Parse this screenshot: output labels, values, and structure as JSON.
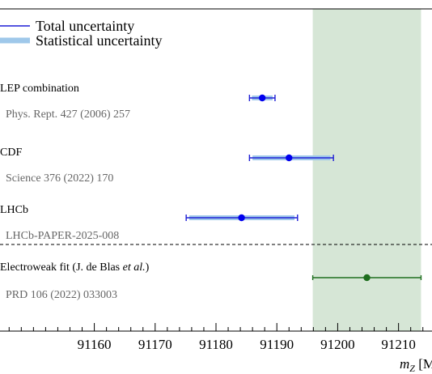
{
  "chart_data": {
    "type": "scatter",
    "title": "",
    "xlabel": "m_Z [MeV]",
    "xlabel_parts": {
      "var": "m",
      "sub": "Z",
      "unit": "[MeV]"
    },
    "xlim": [
      91144.5,
      91215.5
    ],
    "x_ticks": [
      91160,
      91170,
      91180,
      91190,
      91200,
      91210
    ],
    "x_tick_labels": [
      "91160",
      "91170",
      "91180",
      "91190",
      "91200",
      "91210"
    ],
    "grid": false,
    "legend": {
      "location": "top-left",
      "entries": [
        {
          "key": "total",
          "label": "Total uncertainty",
          "style": "thin-line",
          "color": "#1f1fd6"
        },
        {
          "key": "stat",
          "label": "Statistical uncertainty",
          "style": "thick-band",
          "color": "#9fc8ea"
        }
      ]
    },
    "measurements": [
      {
        "name": "LEP combination",
        "reference": "Phys. Rept. 427 (2006) 257",
        "value": 91187.6,
        "total_low": 91185.5,
        "total_high": 91189.7,
        "stat_low": 91185.9,
        "stat_high": 91189.3,
        "color": "#0000ee"
      },
      {
        "name": "CDF",
        "reference": "Science 376 (2022) 170",
        "value": 91192.0,
        "total_low": 91185.5,
        "total_high": 91199.3,
        "stat_low": 91186.0,
        "stat_high": 91198.8,
        "color": "#0000ee"
      },
      {
        "name": "LHCb",
        "reference": "LHCb-PAPER-2025-008",
        "value": 91184.2,
        "total_low": 91175.1,
        "total_high": 91193.4,
        "stat_low": 91175.6,
        "stat_high": 91192.9,
        "color": "#0000ee"
      }
    ],
    "fit": {
      "name_prefix": "Electroweak fit (J. de Blas ",
      "name_emph": "et al.",
      "name_suffix": ")",
      "reference": "PRD 106 (2022) 033003",
      "value": 91204.8,
      "low": 91195.9,
      "high": 91213.7,
      "band": [
        91195.9,
        91213.7
      ],
      "color": "#1e6e1e",
      "band_color": "#d6e6d6"
    }
  }
}
